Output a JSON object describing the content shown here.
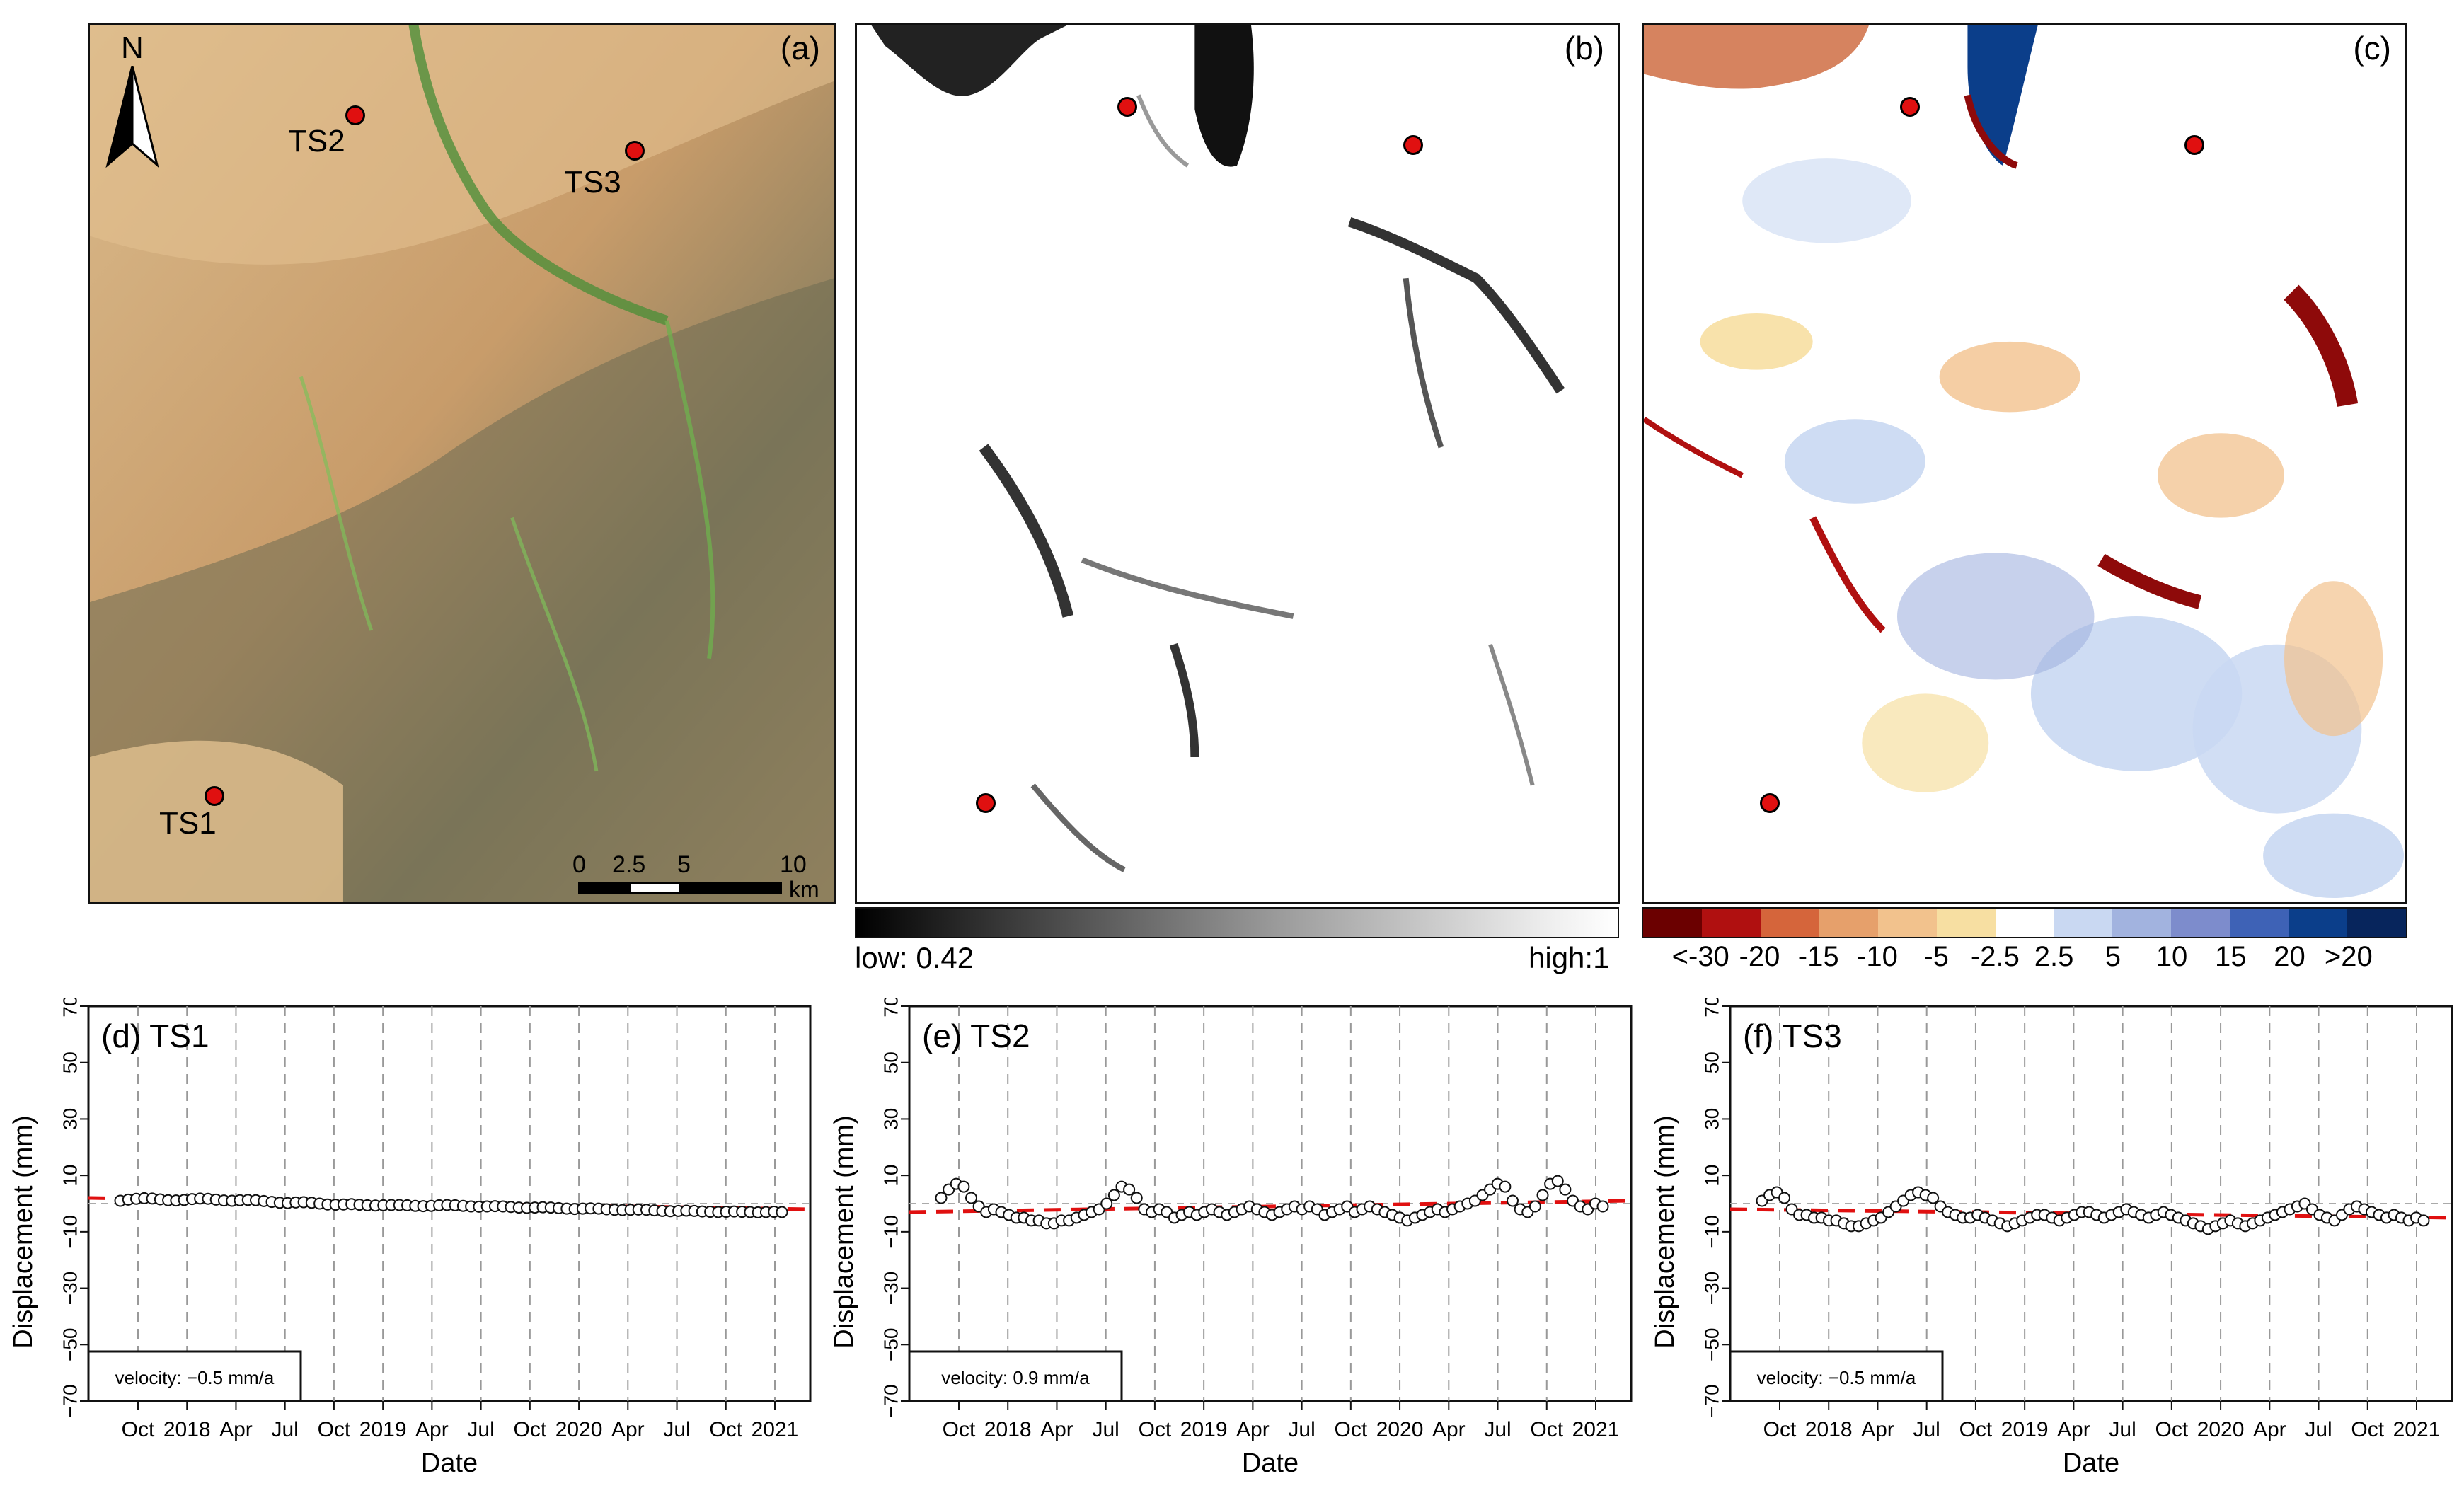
{
  "panels": {
    "a": {
      "label": "(a)",
      "north": "N",
      "sites": [
        "TS1",
        "TS2",
        "TS3"
      ],
      "scale_ticks": [
        "0",
        "2.5",
        "5",
        "10"
      ],
      "scale_unit": "km"
    },
    "b": {
      "label": "(b)"
    },
    "c": {
      "label": "(c)"
    }
  },
  "coherence_legend": {
    "low": "low: 0.42",
    "high": "high:1"
  },
  "velocity_legend": {
    "colors": [
      "#6b0000",
      "#b01010",
      "#d5653b",
      "#e6a06b",
      "#f2c28d",
      "#f7dfa2",
      "#ffffff",
      "#c9d8f2",
      "#a2b3df",
      "#7d8ccc",
      "#3e62b6",
      "#0b3e8a",
      "#07255c"
    ],
    "ticks": [
      "<-30",
      "-20",
      "-15",
      "-10",
      "-5",
      "-2.5",
      "2.5",
      "5",
      "10",
      "15",
      "20",
      ">20"
    ]
  },
  "chart_data": [
    {
      "type": "scatter",
      "title": "(d) TS1",
      "xlabel": "Date",
      "ylabel": "Displacement (mm)",
      "ylim": [
        -70,
        70
      ],
      "yticks": [
        "-70",
        "-50",
        "-30",
        "-10",
        "10",
        "30",
        "50",
        "70"
      ],
      "xticks": [
        "Oct",
        "2018",
        "Apr",
        "Jul",
        "Oct",
        "2019",
        "Apr",
        "Jul",
        "Oct",
        "2020",
        "Apr",
        "Jul",
        "Oct",
        "2021"
      ],
      "velocity_label": "velocity: −0.5 mm/a",
      "trend": [
        2,
        -2
      ],
      "values": [
        1,
        1.4,
        1.7,
        1.9,
        1.8,
        1.5,
        1.2,
        1.1,
        1.3,
        1.6,
        1.8,
        1.7,
        1.4,
        1.1,
        1,
        1.2,
        1.3,
        1.2,
        0.9,
        0.6,
        0.3,
        0.2,
        0.4,
        0.5,
        0.3,
        0,
        -0.3,
        -0.4,
        -0.3,
        -0.2,
        -0.4,
        -0.6,
        -0.7,
        -0.6,
        -0.5,
        -0.5,
        -0.6,
        -0.8,
        -0.9,
        -0.8,
        -0.6,
        -0.5,
        -0.6,
        -0.8,
        -1,
        -1.1,
        -1,
        -0.9,
        -1,
        -1.2,
        -1.4,
        -1.5,
        -1.4,
        -1.3,
        -1.4,
        -1.6,
        -1.8,
        -1.9,
        -1.8,
        -1.7,
        -1.8,
        -2,
        -2.2,
        -2.3,
        -2.2,
        -2.1,
        -2.2,
        -2.4,
        -2.6,
        -2.7,
        -2.6,
        -2.5,
        -2.6,
        -2.8,
        -2.9,
        -3,
        -2.9,
        -2.8,
        -2.9,
        -3,
        -3.1,
        -3,
        -2.9,
        -3
      ]
    },
    {
      "type": "scatter",
      "title": "(e) TS2",
      "xlabel": "Date",
      "ylabel": "Displacement (mm)",
      "ylim": [
        -70,
        70
      ],
      "yticks": [
        "-70",
        "-50",
        "-30",
        "-10",
        "10",
        "30",
        "50",
        "70"
      ],
      "xticks": [
        "Oct",
        "2018",
        "Apr",
        "Jul",
        "Oct",
        "2019",
        "Apr",
        "Jul",
        "Oct",
        "2020",
        "Apr",
        "Jul",
        "Oct",
        "2021"
      ],
      "velocity_label": "velocity: 0.9 mm/a",
      "trend": [
        -3,
        1
      ],
      "values": [
        2,
        5,
        7,
        6,
        2,
        -1,
        -3,
        -2,
        -3,
        -4,
        -5,
        -5,
        -6,
        -6,
        -7,
        -7,
        -6,
        -6,
        -5,
        -4,
        -3,
        -2,
        0,
        3,
        6,
        5,
        2,
        -2,
        -3,
        -2,
        -3,
        -5,
        -4,
        -3,
        -4,
        -3,
        -2,
        -3,
        -4,
        -3,
        -2,
        -1,
        -2,
        -3,
        -4,
        -3,
        -2,
        -1,
        -2,
        -1,
        -2,
        -4,
        -3,
        -2,
        -1,
        -3,
        -2,
        -1,
        -2,
        -3,
        -4,
        -5,
        -6,
        -5,
        -4,
        -3,
        -2,
        -3,
        -2,
        -1,
        0,
        1,
        3,
        5,
        7,
        6,
        1,
        -2,
        -3,
        -1,
        3,
        7,
        8,
        5,
        1,
        -1,
        -2,
        0,
        -1
      ]
    },
    {
      "type": "scatter",
      "title": "(f) TS3",
      "xlabel": "Date",
      "ylabel": "Displacement (mm)",
      "ylim": [
        -70,
        70
      ],
      "yticks": [
        "-70",
        "-50",
        "-30",
        "-10",
        "10",
        "30",
        "50",
        "70"
      ],
      "xticks": [
        "Oct",
        "2018",
        "Apr",
        "Jul",
        "Oct",
        "2019",
        "Apr",
        "Jul",
        "Oct",
        "2020",
        "Apr",
        "Jul",
        "Oct",
        "2021"
      ],
      "velocity_label": "velocity: −0.5 mm/a",
      "trend": [
        -2,
        -5
      ],
      "values": [
        1,
        3,
        4,
        2,
        -2,
        -4,
        -4,
        -5,
        -5,
        -6,
        -6,
        -7,
        -8,
        -8,
        -7,
        -6,
        -5,
        -3,
        -1,
        1,
        3,
        4,
        3,
        2,
        -1,
        -3,
        -4,
        -5,
        -5,
        -4,
        -5,
        -6,
        -7,
        -8,
        -7,
        -6,
        -5,
        -4,
        -4,
        -5,
        -6,
        -5,
        -4,
        -3,
        -3,
        -4,
        -5,
        -4,
        -3,
        -2,
        -3,
        -4,
        -5,
        -4,
        -3,
        -4,
        -5,
        -6,
        -7,
        -8,
        -9,
        -8,
        -7,
        -6,
        -7,
        -8,
        -7,
        -6,
        -5,
        -4,
        -3,
        -2,
        -1,
        0,
        -2,
        -4,
        -5,
        -6,
        -4,
        -2,
        -1,
        -2,
        -3,
        -4,
        -5,
        -4,
        -5,
        -6,
        -5,
        -6
      ]
    }
  ]
}
